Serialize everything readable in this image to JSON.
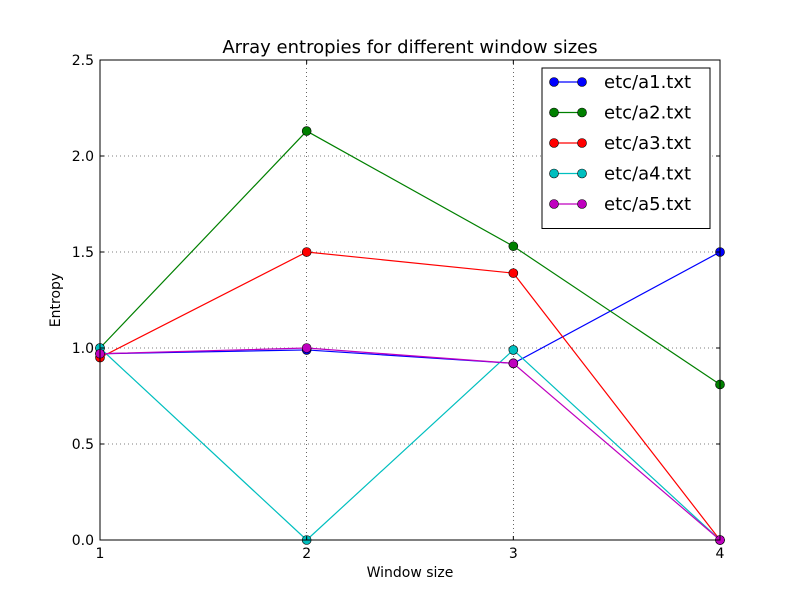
{
  "chart_data": {
    "type": "line",
    "title": "Array entropies for different window sizes",
    "xlabel": "Window size",
    "ylabel": "Entropy",
    "x": [
      1,
      2,
      3,
      4
    ],
    "xlim": [
      1,
      4
    ],
    "ylim": [
      0.0,
      2.5
    ],
    "xticks": [
      "1",
      "2",
      "3",
      "4"
    ],
    "yticks": [
      "0.0",
      "0.5",
      "1.0",
      "1.5",
      "2.0",
      "2.5"
    ],
    "grid": true,
    "legend_position": "top-right",
    "series": [
      {
        "name": "etc/a1.txt",
        "color": "#0000ff",
        "values": [
          0.97,
          0.99,
          0.92,
          1.5
        ]
      },
      {
        "name": "etc/a2.txt",
        "color": "#008000",
        "values": [
          1.0,
          2.13,
          1.53,
          0.81
        ]
      },
      {
        "name": "etc/a3.txt",
        "color": "#ff0000",
        "values": [
          0.95,
          1.5,
          1.39,
          0.0
        ]
      },
      {
        "name": "etc/a4.txt",
        "color": "#00bfbf",
        "values": [
          1.0,
          0.0,
          0.99,
          0.0
        ]
      },
      {
        "name": "etc/a5.txt",
        "color": "#bf00bf",
        "values": [
          0.97,
          1.0,
          0.92,
          0.0
        ]
      }
    ]
  }
}
